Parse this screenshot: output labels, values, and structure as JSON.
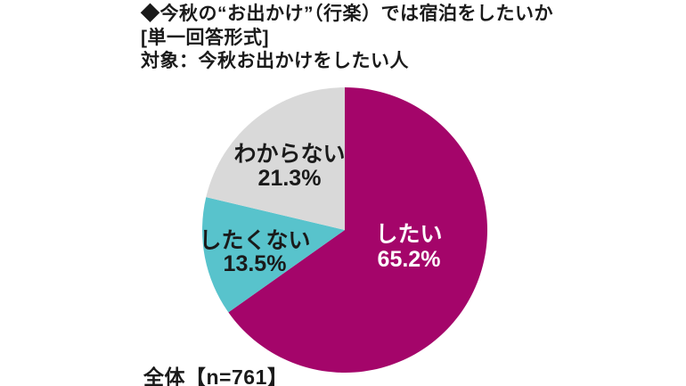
{
  "header": {
    "line1": "◆今秋の“お出かけ”（行楽）では宿泊をしたいか",
    "line2": "[単一回答形式]",
    "line3": "対象：今秋お出かけをしたい人"
  },
  "footer": {
    "sample_label": "全体【n=761】"
  },
  "chart_data": {
    "type": "pie",
    "title": "今秋の“お出かけ”（行楽）では宿泊をしたいか",
    "subtitle": "[単一回答形式] 対象：今秋お出かけをしたい人",
    "categories": [
      "したい",
      "したくない",
      "わからない"
    ],
    "values": [
      65.2,
      13.5,
      21.3
    ],
    "unit": "%",
    "colors": [
      "#A4056A",
      "#58C3CC",
      "#D9D9D9"
    ],
    "label_text_colors": [
      "#FFFFFF",
      "#1A1A1A",
      "#1A1A1A"
    ],
    "start_angle_deg": 0,
    "direction": "clockwise",
    "legend": "none",
    "sample_note": "全体【n=761】"
  }
}
